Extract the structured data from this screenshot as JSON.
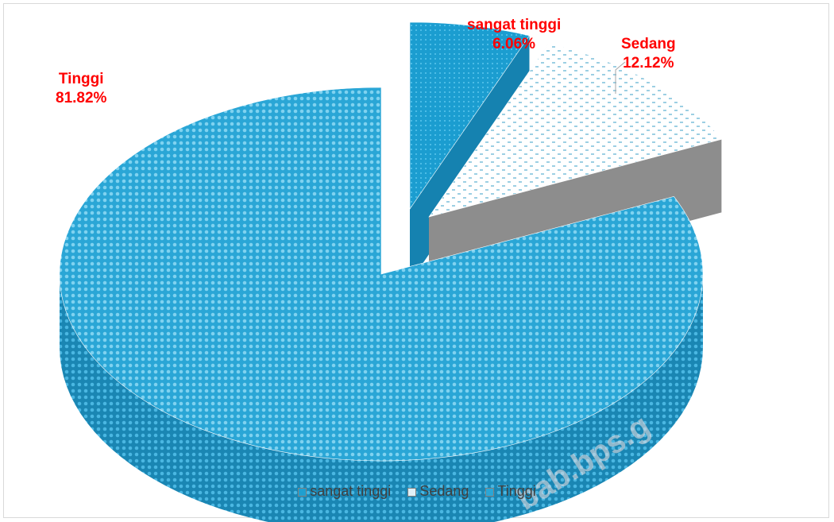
{
  "chart_data": {
    "type": "pie",
    "style": "3d-exploded",
    "slices": [
      {
        "label": "sangat tinggi",
        "value": 6.06,
        "display": "6.06%",
        "color": "#1f9fd0"
      },
      {
        "label": "Sedang",
        "value": 12.12,
        "display": "12.12%",
        "color": "#dff0f7"
      },
      {
        "label": "Tinggi",
        "value": 81.82,
        "display": "81.82%",
        "color": "#2aa6d6"
      }
    ],
    "legend_position": "bottom",
    "label_color": "#ff0000"
  },
  "watermark": "bab.bps.g"
}
